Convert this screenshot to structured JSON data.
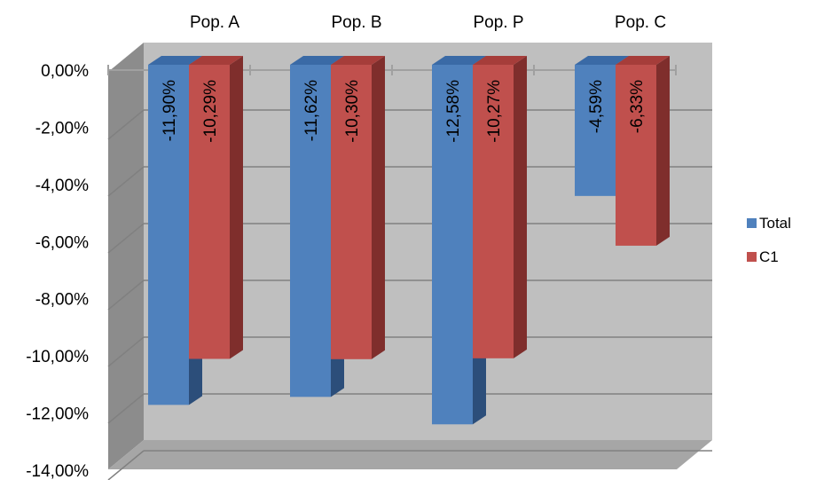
{
  "chart_data": {
    "type": "bar",
    "style": "3d-clustered-column",
    "categories": [
      "Pop. A",
      "Pop. B",
      "Pop. P",
      "Pop. C"
    ],
    "series": [
      {
        "name": "Total",
        "values": [
          -11.9,
          -11.62,
          -12.58,
          -4.59
        ],
        "labels": [
          "-11,90%",
          "-11,62%",
          "-12,58%",
          "-4,59%"
        ]
      },
      {
        "name": "C1",
        "values": [
          -10.29,
          -10.3,
          -10.27,
          -6.33
        ],
        "labels": [
          "-10,29%",
          "-10,30%",
          "-10,27%",
          "-6,33%"
        ]
      }
    ],
    "y_ticks": [
      0,
      -2,
      -4,
      -6,
      -8,
      -10,
      -12,
      -14
    ],
    "y_tick_labels": [
      "0,00%",
      "-2,00%",
      "-4,00%",
      "-6,00%",
      "-8,00%",
      "-10,00%",
      "-12,00%",
      "-14,00%"
    ],
    "ylim": [
      -14,
      0
    ],
    "category_labels_position": "top",
    "grid": true,
    "legend": "right",
    "colors": {
      "series": [
        "#4F81BD",
        "#C0504D"
      ],
      "series_top": [
        "#3A6AA6",
        "#A63D3A"
      ],
      "series_side": [
        "#2C4E7A",
        "#7F2E2C"
      ],
      "back_wall": "#BFBFBF",
      "side_wall": "#8C8C8C",
      "floor": "#A6A6A6",
      "gridline": "#808080"
    }
  }
}
